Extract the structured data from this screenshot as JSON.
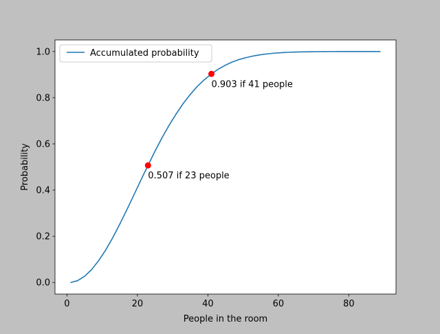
{
  "chart_data": {
    "type": "line",
    "title": "",
    "xlabel": "People in the room",
    "ylabel": "Probability",
    "xlim": [
      -3.4,
      93.4
    ],
    "ylim": [
      -0.05,
      1.05
    ],
    "xticks": [
      0,
      20,
      40,
      60,
      80
    ],
    "yticks": [
      0.0,
      0.2,
      0.4,
      0.6,
      0.8,
      1.0
    ],
    "xtick_labels": [
      "0",
      "20",
      "40",
      "60",
      "80"
    ],
    "ytick_labels": [
      "0.0",
      "0.2",
      "0.4",
      "0.6",
      "0.8",
      "1.0"
    ],
    "grid": false,
    "legend_position": "top-left",
    "series": [
      {
        "name": "Accumulated probability",
        "color": "#1f77b4",
        "x": [
          1,
          3,
          5,
          7,
          9,
          11,
          13,
          15,
          17,
          19,
          21,
          23,
          25,
          27,
          29,
          31,
          33,
          35,
          37,
          39,
          41,
          43,
          45,
          47,
          49,
          51,
          53,
          55,
          57,
          59,
          61,
          63,
          65,
          67,
          69,
          71,
          73,
          75,
          77,
          79,
          81,
          83,
          85,
          87,
          89
        ],
        "y": [
          0.0,
          0.008,
          0.027,
          0.056,
          0.095,
          0.141,
          0.194,
          0.253,
          0.315,
          0.379,
          0.444,
          0.507,
          0.569,
          0.627,
          0.681,
          0.73,
          0.775,
          0.814,
          0.849,
          0.878,
          0.903,
          0.924,
          0.941,
          0.955,
          0.966,
          0.974,
          0.981,
          0.986,
          0.99,
          0.993,
          0.995,
          0.9967,
          0.9977,
          0.9984,
          0.9989,
          0.9993,
          0.9995,
          0.9997,
          0.9998,
          0.99987,
          0.99991,
          0.99994,
          0.99996,
          0.99998,
          0.99999
        ]
      }
    ],
    "markers": [
      {
        "x": 23,
        "y": 0.507,
        "color": "#ff0000",
        "label": "0.507 if 23 people"
      },
      {
        "x": 41,
        "y": 0.903,
        "color": "#ff0000",
        "label": "0.903 if 41 people"
      }
    ]
  }
}
